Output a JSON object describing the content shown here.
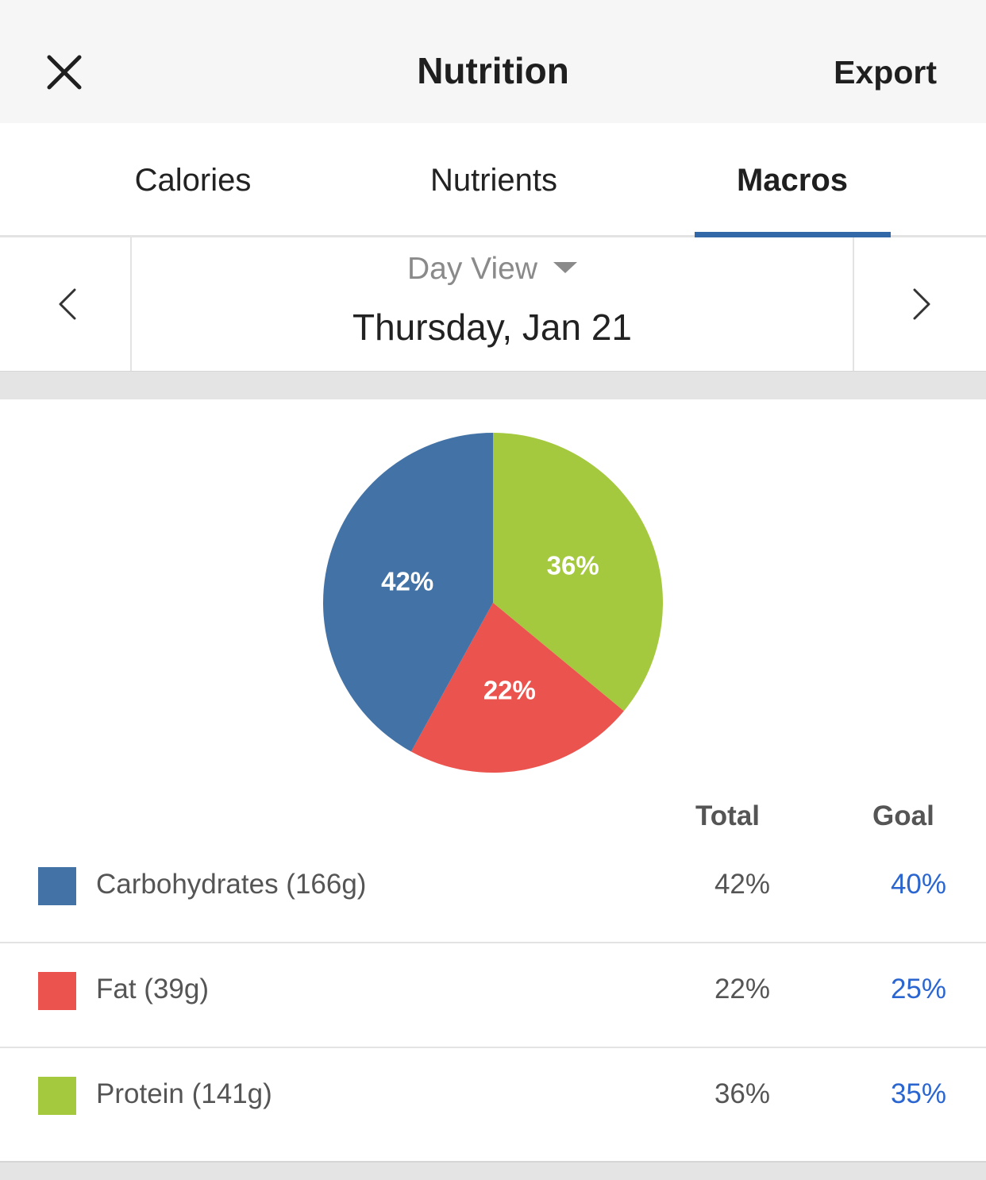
{
  "header": {
    "title": "Nutrition",
    "export_label": "Export"
  },
  "tabs": [
    {
      "label": "Calories",
      "active": false
    },
    {
      "label": "Nutrients",
      "active": false
    },
    {
      "label": "Macros",
      "active": true
    }
  ],
  "date_nav": {
    "view_label": "Day View",
    "date_label": "Thursday, Jan 21"
  },
  "colors": {
    "carbs": "#4373a6",
    "fat": "#eb544e",
    "protein": "#a4c93e",
    "accent": "#3368a8",
    "goal_text": "#2b66d0"
  },
  "chart_data": {
    "type": "pie",
    "slices": [
      {
        "label": "Protein",
        "value": 36,
        "display": "36%",
        "color": "#a4c93e"
      },
      {
        "label": "Fat",
        "value": 22,
        "display": "22%",
        "color": "#eb544e"
      },
      {
        "label": "Carbohydrates",
        "value": 42,
        "display": "42%",
        "color": "#4373a6"
      }
    ],
    "start": "top",
    "direction": "clockwise"
  },
  "table": {
    "header_total": "Total",
    "header_goal": "Goal",
    "rows": [
      {
        "label": "Carbohydrates (166g)",
        "total": "42%",
        "goal": "40%",
        "color": "#4373a6"
      },
      {
        "label": "Fat (39g)",
        "total": "22%",
        "goal": "25%",
        "color": "#eb544e"
      },
      {
        "label": "Protein (141g)",
        "total": "36%",
        "goal": "35%",
        "color": "#a4c93e"
      }
    ]
  }
}
